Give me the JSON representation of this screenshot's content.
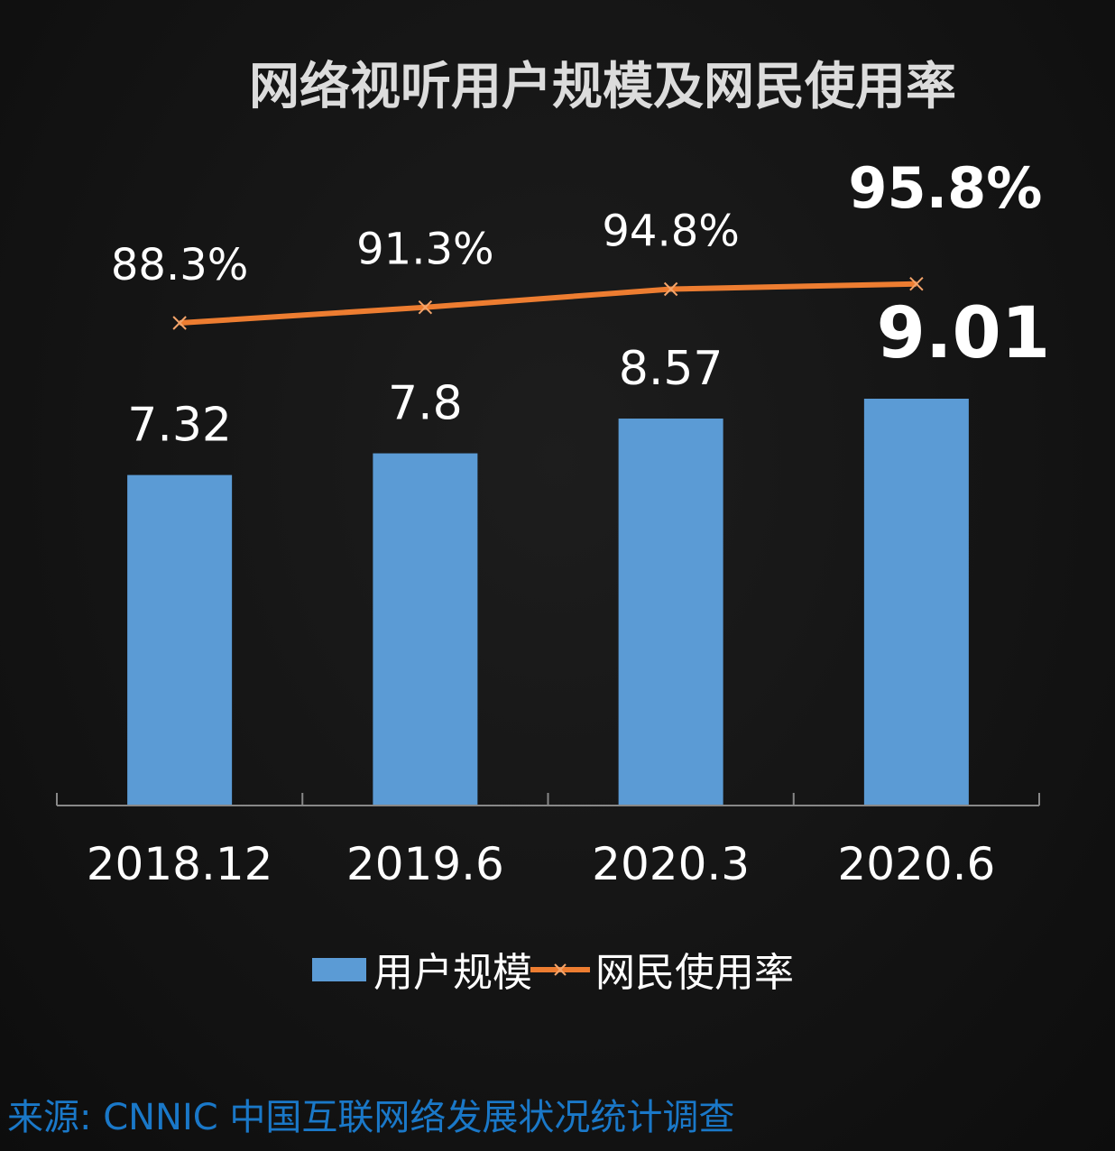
{
  "title": "网络视听用户规模及网民使用率",
  "source": "来源:   CNNIC 中国互联网络发展状况统计调查",
  "colors": {
    "bar": "#5b9bd5",
    "line": "#ed7d31",
    "axis": "#888888",
    "background": "#121212"
  },
  "chart_data": {
    "type": "bar",
    "categories": [
      "2018.12",
      "2019.6",
      "2020.3",
      "2020.6"
    ],
    "series": [
      {
        "name": "用户规模",
        "type": "bar",
        "values": [
          7.32,
          7.8,
          8.57,
          9.01
        ],
        "labels": [
          "7.32",
          "7.8",
          "8.57",
          "9.01"
        ]
      },
      {
        "name": "网民使用率",
        "type": "line",
        "values": [
          88.3,
          91.3,
          94.8,
          95.8
        ],
        "labels": [
          "88.3%",
          "91.3%",
          "94.8%",
          "95.8%"
        ]
      }
    ],
    "legend_position": "bottom",
    "grid": false
  }
}
